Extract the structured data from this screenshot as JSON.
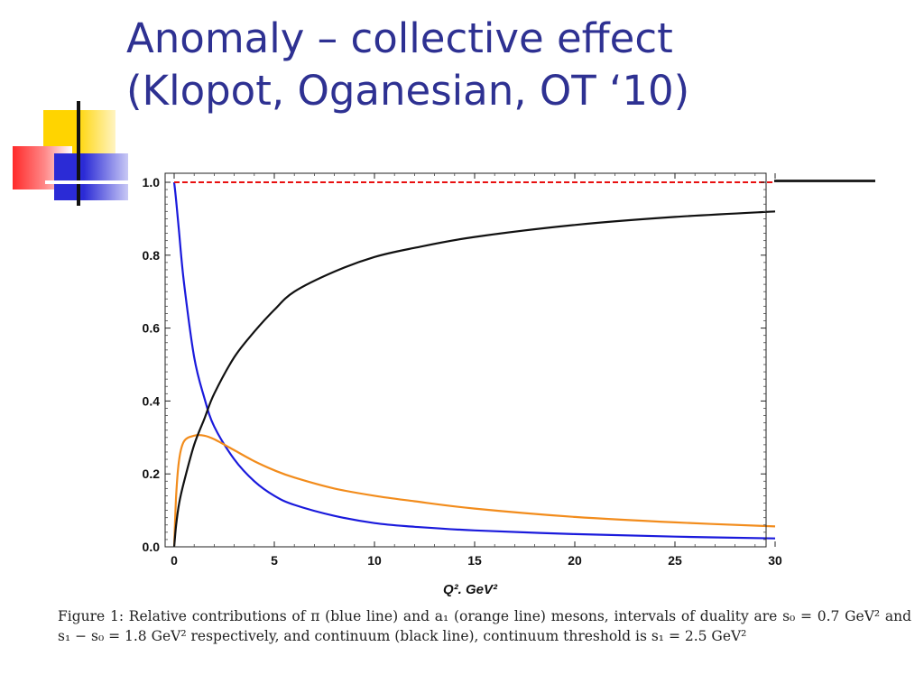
{
  "slide": {
    "title_line1": "Anomaly – collective effect",
    "title_line2": "(Klopot, Oganesian, OT ‘10)",
    "caption": "Figure 1: Relative contributions of π (blue line) and a₁ (orange line) mesons, intervals of duality are s₀ = 0.7 GeV² and s₁ − s₀ = 1.8 GeV² respectively, and continuum (black line), continuum threshold is s₁ = 2.5 GeV²"
  },
  "chart_data": {
    "type": "line",
    "xlabel": "Q². GeV²",
    "xlim": [
      0,
      30
    ],
    "ylim": [
      0,
      1.0
    ],
    "xticks": [
      0,
      5,
      10,
      15,
      20,
      25,
      30
    ],
    "yticks": [
      0.0,
      0.2,
      0.4,
      0.6,
      0.8,
      1.0
    ],
    "xtick_labels": [
      "0",
      "5",
      "10",
      "15",
      "20",
      "25",
      "30"
    ],
    "ytick_labels": [
      "0.0",
      "0.2",
      "0.4",
      "0.6",
      "0.8",
      "1.0"
    ],
    "grid": false,
    "x": [
      0,
      0.1,
      0.25,
      0.5,
      1,
      1.5,
      2,
      3,
      4,
      5,
      6,
      8,
      10,
      12,
      15,
      20,
      25,
      30
    ],
    "series": [
      {
        "color": "#1a1adc",
        "dashed": false,
        "values": [
          1.0,
          0.95,
          0.86,
          0.72,
          0.52,
          0.41,
          0.33,
          0.24,
          0.18,
          0.14,
          0.115,
          0.085,
          0.065,
          0.055,
          0.045,
          0.035,
          0.028,
          0.023
        ]
      },
      {
        "color": "#f28c1c",
        "dashed": false,
        "values": [
          0.0,
          0.14,
          0.24,
          0.29,
          0.305,
          0.305,
          0.295,
          0.265,
          0.235,
          0.21,
          0.19,
          0.16,
          0.14,
          0.125,
          0.105,
          0.082,
          0.067,
          0.056
        ]
      },
      {
        "color": "#111111",
        "dashed": false,
        "values": [
          0.0,
          0.06,
          0.12,
          0.18,
          0.28,
          0.35,
          0.42,
          0.52,
          0.59,
          0.65,
          0.7,
          0.755,
          0.795,
          0.82,
          0.85,
          0.883,
          0.905,
          0.92
        ]
      },
      {
        "color": "#e81010",
        "dashed": true,
        "values": [
          1.0,
          1.0,
          1.0,
          1.0,
          1.0,
          1.0,
          1.0,
          1.0,
          1.0,
          1.0,
          1.0,
          1.0,
          1.0,
          1.0,
          1.0,
          1.0,
          1.0,
          1.0
        ]
      }
    ]
  }
}
